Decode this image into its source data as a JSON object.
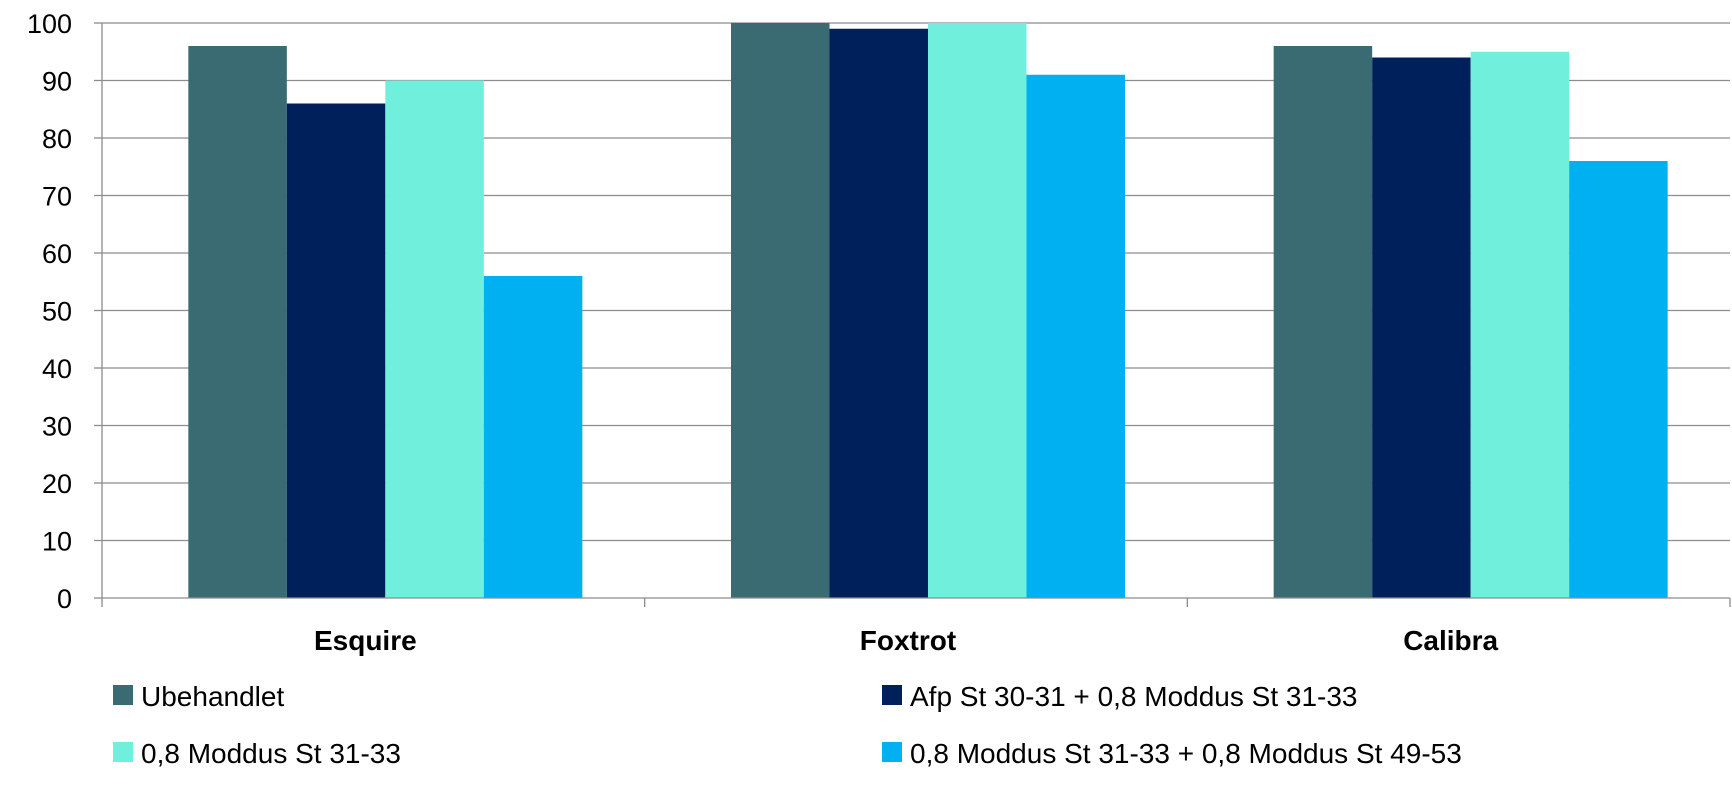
{
  "chart_data": {
    "type": "bar",
    "categories": [
      "Esquire",
      "Foxtrot",
      "Calibra"
    ],
    "series": [
      {
        "name": "Ubehandlet",
        "color": "#3A6B73",
        "values": [
          96,
          100,
          96
        ]
      },
      {
        "name": "Afp St 30-31 + 0,8 Moddus St 31-33",
        "color": "#00205C",
        "values": [
          86,
          99,
          94
        ]
      },
      {
        "name": "0,8 Moddus St 31-33",
        "color": "#70F0DC",
        "values": [
          90,
          100,
          95
        ]
      },
      {
        "name": "0,8 Moddus St 31-33 + 0,8 Moddus St 49-53",
        "color": "#00B0F0",
        "values": [
          56,
          91,
          76
        ]
      }
    ],
    "yticks": [
      "0",
      "10",
      "20",
      "30",
      "40",
      "50",
      "60",
      "70",
      "80",
      "90",
      "100"
    ],
    "ylim": [
      0,
      100
    ],
    "grid": true,
    "legend_position": "bottom",
    "title": "",
    "xlabel": "",
    "ylabel": ""
  }
}
